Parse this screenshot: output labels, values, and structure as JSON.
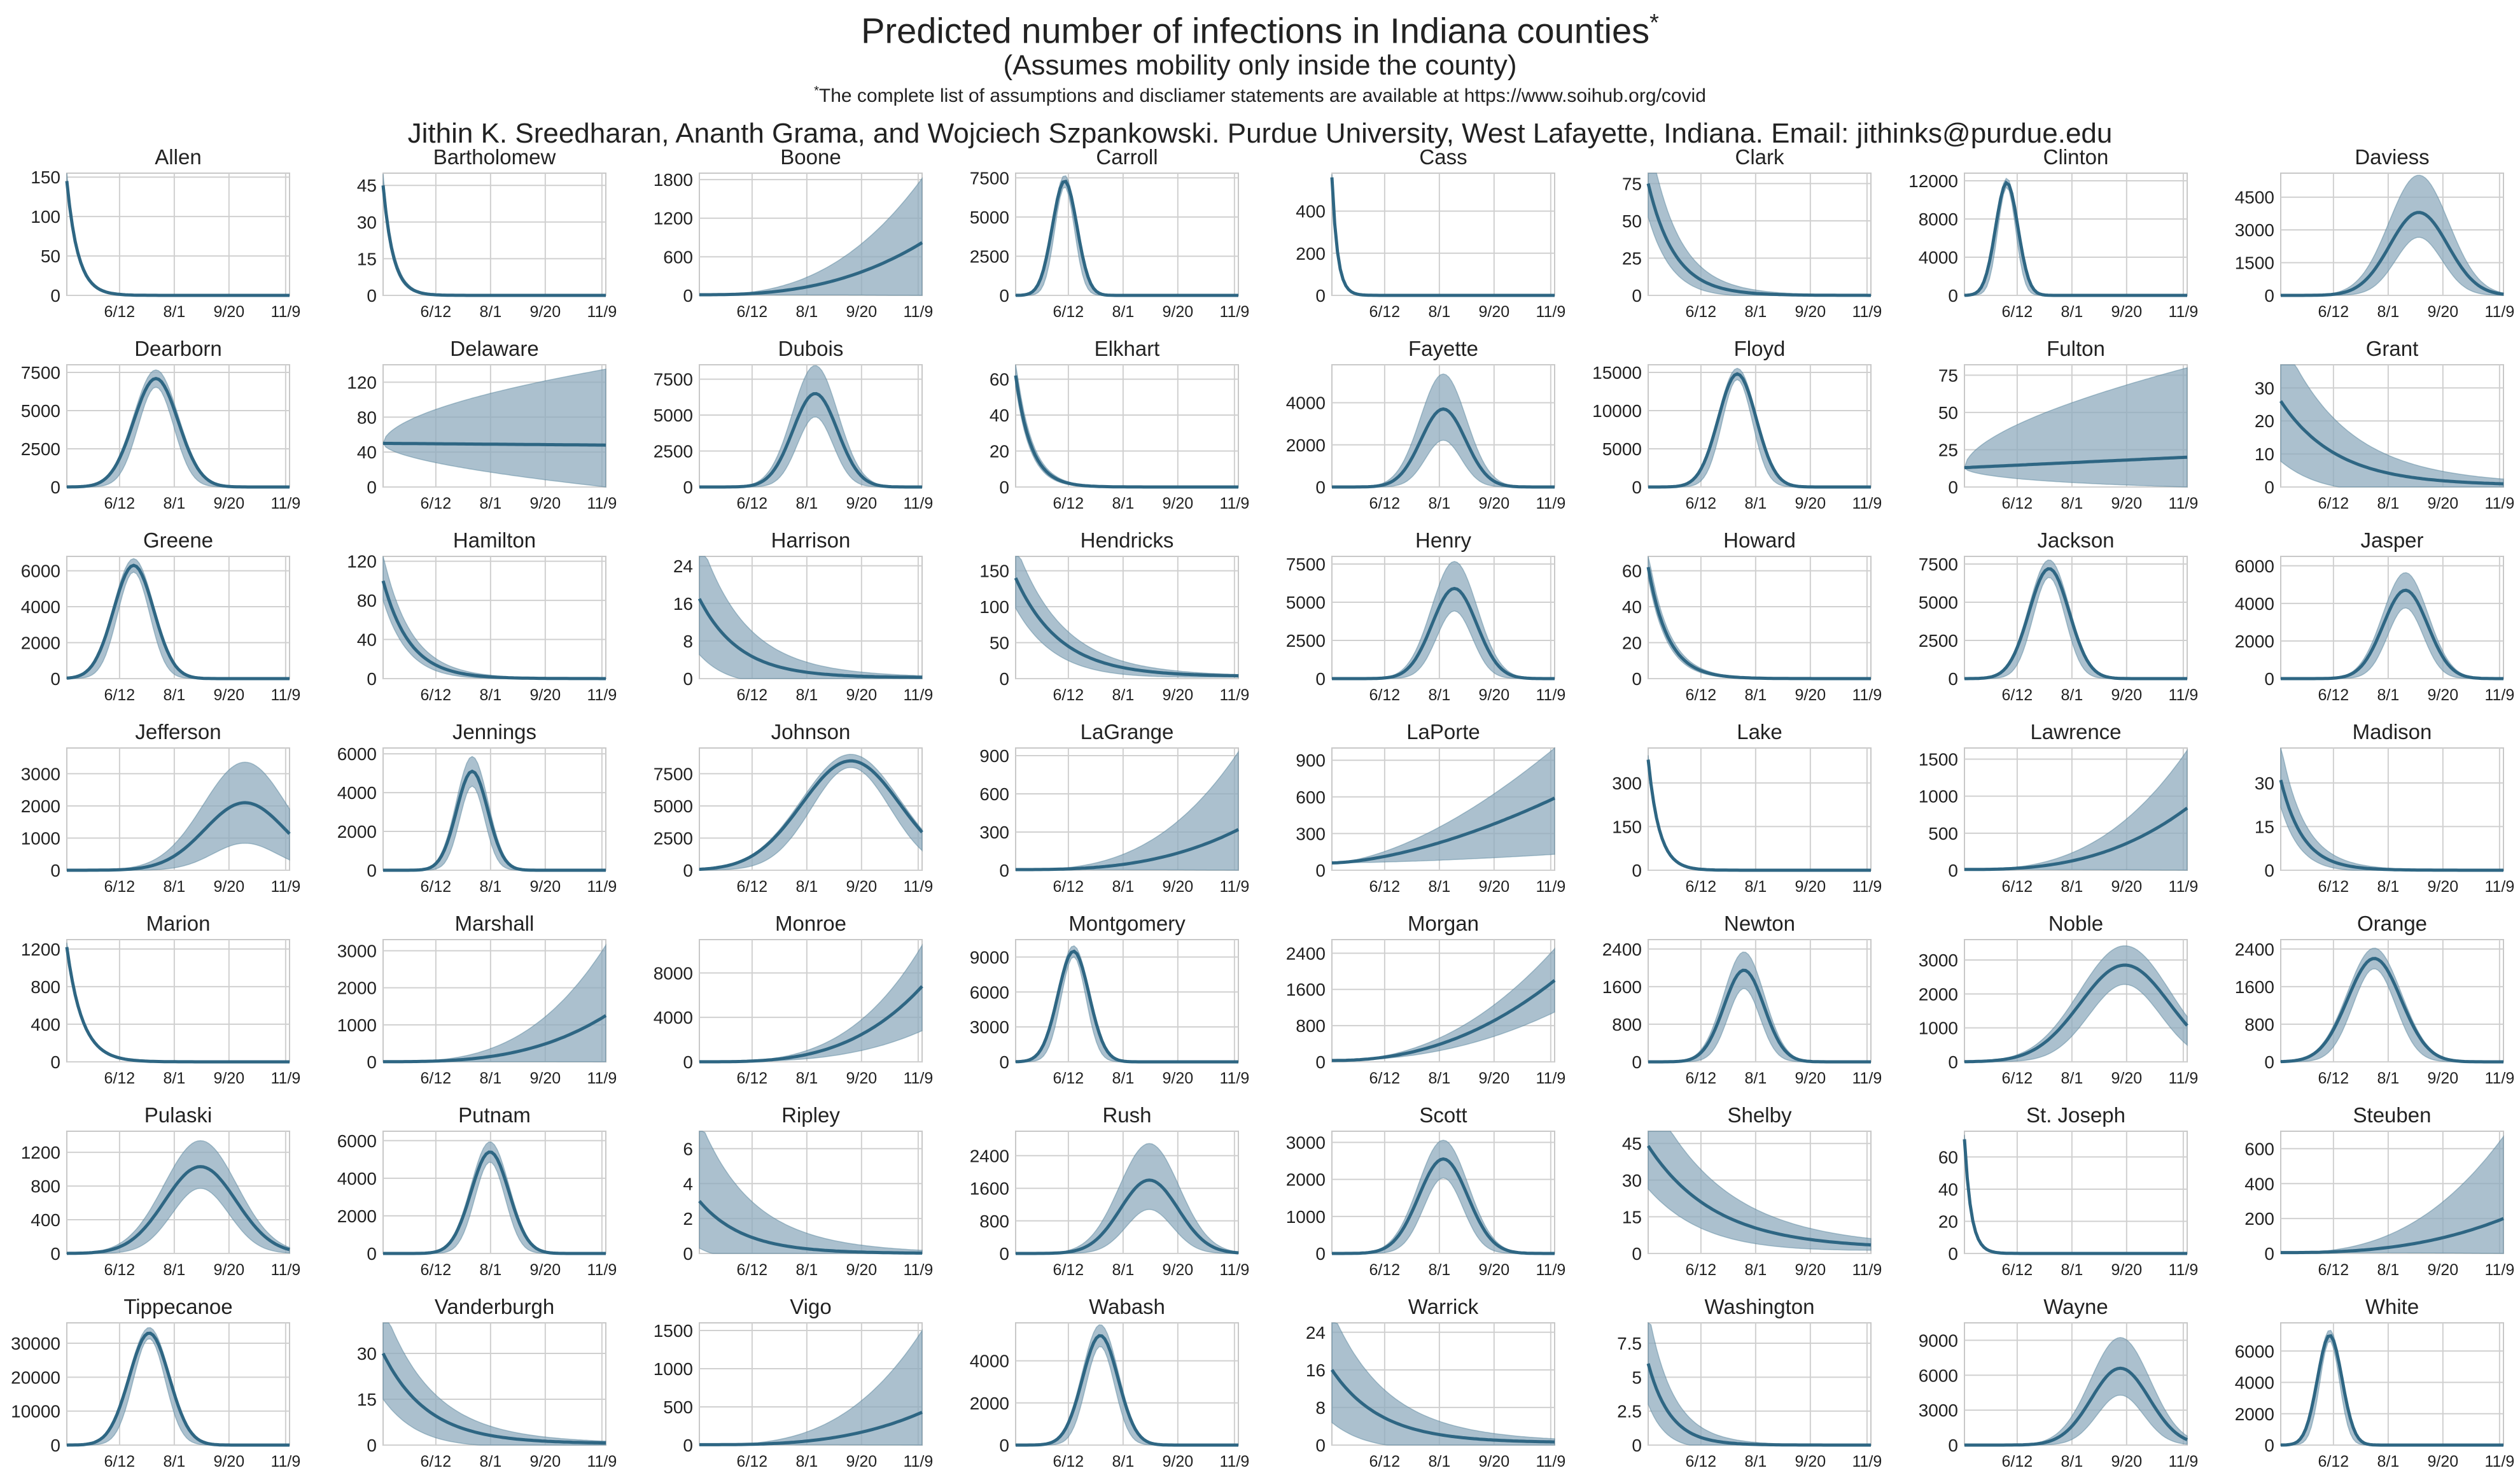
{
  "header": {
    "title": "Predicted number of infections in Indiana counties",
    "title_mark": "*",
    "subtitle": "(Assumes mobility only inside the county)",
    "note_mark": "*",
    "note": "The complete list of assumptions and discliamer statements are available at https://www.soihub.org/covid",
    "authors": "Jithin K. Sreedharan, Ananth Grama, and Wojciech Szpankowski. Purdue University, West Lafayette, Indiana. Email: jithinks@purdue.edu"
  },
  "style": {
    "line_color": "#2e6683",
    "band_color": "#8fabbd",
    "grid_color": "#d0d0d0",
    "frame_color": "#c8c8c8"
  },
  "chart_data": {
    "type": "line",
    "layout": "small-multiples 8 columns x 7 rows",
    "x_axis": {
      "domain": [
        "4/20",
        "11/9"
      ],
      "tick_labels": [
        "6/12",
        "8/1",
        "9/20",
        "11/9"
      ]
    },
    "panels": [
      {
        "name": "Allen",
        "ylim": [
          0,
          155
        ],
        "yticks": [
          0,
          50,
          100,
          150
        ],
        "shape": "decay",
        "start": 145,
        "end": 0,
        "halfRate": 0.05,
        "bandUp": 0.06,
        "bandLo": 0.05
      },
      {
        "name": "Bartholomew",
        "ylim": [
          0,
          50
        ],
        "yticks": [
          0,
          15,
          30,
          45
        ],
        "shape": "decay",
        "start": 45,
        "end": 0,
        "halfRate": 0.045,
        "bandUp": 0.08,
        "bandLo": 0.08
      },
      {
        "name": "Boone",
        "ylim": [
          0,
          1900
        ],
        "yticks": [
          0,
          600,
          1200,
          1800
        ],
        "shape": "grow",
        "start": 10,
        "end": 820,
        "pow": 2.6,
        "bandUpEnd": 1820,
        "bandLoEnd": 0
      },
      {
        "name": "Carroll",
        "ylim": [
          0,
          7800
        ],
        "yticks": [
          0,
          2500,
          5000,
          7500
        ],
        "shape": "peak",
        "peak": 7300,
        "center": 0.22,
        "width": 0.055,
        "bandUp": 0.05,
        "bandLo": 0.05
      },
      {
        "name": "Cass",
        "ylim": [
          0,
          580
        ],
        "yticks": [
          0,
          200,
          400
        ],
        "shape": "decay",
        "start": 560,
        "end": 0,
        "halfRate": 0.025,
        "bandUp": 0.02,
        "bandLo": 0.02
      },
      {
        "name": "Clark",
        "ylim": [
          0,
          82
        ],
        "yticks": [
          0,
          25,
          50,
          75
        ],
        "shape": "decay",
        "start": 75,
        "end": 0,
        "halfRate": 0.12,
        "bandUp": 0.35,
        "bandLo": 0.3
      },
      {
        "name": "Clinton",
        "ylim": [
          0,
          12800
        ],
        "yticks": [
          0,
          4000,
          8000,
          12000
        ],
        "shape": "peak",
        "peak": 11800,
        "center": 0.19,
        "width": 0.05,
        "bandUp": 0.04,
        "bandLo": 0.04
      },
      {
        "name": "Daviess",
        "ylim": [
          0,
          5600
        ],
        "yticks": [
          0,
          1500,
          3000,
          4500
        ],
        "shape": "peak",
        "peak": 3800,
        "center": 0.62,
        "width": 0.13,
        "bandUp": 0.45,
        "bandLo": 0.3
      },
      {
        "name": "Dearborn",
        "ylim": [
          0,
          8000
        ],
        "yticks": [
          0,
          2500,
          5000,
          7500
        ],
        "shape": "peak",
        "peak": 7100,
        "center": 0.4,
        "width": 0.1,
        "bandUp": 0.08,
        "bandLo": 0.08
      },
      {
        "name": "Delaware",
        "ylim": [
          0,
          140
        ],
        "yticks": [
          0,
          40,
          80,
          120
        ],
        "shape": "flat",
        "start": 50,
        "end": 48,
        "bandUpEnd": 135,
        "bandLoEnd": 0
      },
      {
        "name": "Dubois",
        "ylim": [
          0,
          8500
        ],
        "yticks": [
          0,
          2500,
          5000,
          7500
        ],
        "shape": "peak",
        "peak": 6500,
        "center": 0.52,
        "width": 0.1,
        "bandUp": 0.3,
        "bandLo": 0.25
      },
      {
        "name": "Elkhart",
        "ylim": [
          0,
          68
        ],
        "yticks": [
          0,
          20,
          40,
          60
        ],
        "shape": "decay",
        "start": 62,
        "end": 0,
        "halfRate": 0.07,
        "bandUp": 0.1,
        "bandLo": 0.1
      },
      {
        "name": "Fayette",
        "ylim": [
          0,
          5800
        ],
        "yticks": [
          0,
          2000,
          4000
        ],
        "shape": "peak",
        "peak": 3700,
        "center": 0.5,
        "width": 0.1,
        "bandUp": 0.45,
        "bandLo": 0.4
      },
      {
        "name": "Floyd",
        "ylim": [
          0,
          16000
        ],
        "yticks": [
          0,
          5000,
          10000,
          15000
        ],
        "shape": "peak",
        "peak": 14800,
        "center": 0.4,
        "width": 0.085,
        "bandUp": 0.05,
        "bandLo": 0.05
      },
      {
        "name": "Fulton",
        "ylim": [
          0,
          82
        ],
        "yticks": [
          0,
          25,
          50,
          75
        ],
        "shape": "flat",
        "start": 13,
        "end": 20,
        "bandUpEnd": 80,
        "bandLoEnd": 0
      },
      {
        "name": "Grant",
        "ylim": [
          0,
          37
        ],
        "yticks": [
          0,
          10,
          20,
          30
        ],
        "shape": "decay",
        "start": 26,
        "end": 0.5,
        "halfRate": 0.25,
        "bandUp": 0.6,
        "bandLo": 0.7
      },
      {
        "name": "Greene",
        "ylim": [
          0,
          6800
        ],
        "yticks": [
          0,
          2000,
          4000,
          6000
        ],
        "shape": "peak",
        "peak": 6300,
        "center": 0.3,
        "width": 0.09,
        "bandUp": 0.06,
        "bandLo": 0.06
      },
      {
        "name": "Hamilton",
        "ylim": [
          0,
          125
        ],
        "yticks": [
          0,
          40,
          80,
          120
        ],
        "shape": "decay",
        "start": 100,
        "end": 0,
        "halfRate": 0.12,
        "bandUp": 0.2,
        "bandLo": 0.2
      },
      {
        "name": "Harrison",
        "ylim": [
          0,
          26
        ],
        "yticks": [
          0,
          8,
          16,
          24
        ],
        "shape": "decay",
        "start": 17,
        "end": 0.2,
        "halfRate": 0.18,
        "bandUp": 0.6,
        "bandLo": 0.7
      },
      {
        "name": "Hendricks",
        "ylim": [
          0,
          170
        ],
        "yticks": [
          0,
          50,
          100,
          150
        ],
        "shape": "decay",
        "start": 140,
        "end": 3,
        "halfRate": 0.2,
        "bandUp": 0.25,
        "bandLo": 0.3
      },
      {
        "name": "Henry",
        "ylim": [
          0,
          8000
        ],
        "yticks": [
          0,
          2500,
          5000,
          7500
        ],
        "shape": "peak",
        "peak": 5900,
        "center": 0.55,
        "width": 0.1,
        "bandUp": 0.3,
        "bandLo": 0.25
      },
      {
        "name": "Howard",
        "ylim": [
          0,
          68
        ],
        "yticks": [
          0,
          20,
          40,
          60
        ],
        "shape": "decay",
        "start": 62,
        "end": 0,
        "halfRate": 0.09,
        "bandUp": 0.1,
        "bandLo": 0.1
      },
      {
        "name": "Jackson",
        "ylim": [
          0,
          8000
        ],
        "yticks": [
          0,
          2500,
          5000,
          7500
        ],
        "shape": "peak",
        "peak": 7200,
        "center": 0.38,
        "width": 0.09,
        "bandUp": 0.08,
        "bandLo": 0.08
      },
      {
        "name": "Jasper",
        "ylim": [
          0,
          6500
        ],
        "yticks": [
          0,
          2000,
          4000,
          6000
        ],
        "shape": "peak",
        "peak": 4700,
        "center": 0.56,
        "width": 0.1,
        "bandUp": 0.2,
        "bandLo": 0.2
      },
      {
        "name": "Jefferson",
        "ylim": [
          0,
          3800
        ],
        "yticks": [
          0,
          1000,
          2000,
          3000
        ],
        "shape": "peak",
        "peak": 2100,
        "center": 0.8,
        "width": 0.18,
        "bandUp": 0.6,
        "bandLo": 0.6
      },
      {
        "name": "Jennings",
        "ylim": [
          0,
          6300
        ],
        "yticks": [
          0,
          2000,
          4000,
          6000
        ],
        "shape": "peak",
        "peak": 5100,
        "center": 0.4,
        "width": 0.07,
        "bandUp": 0.15,
        "bandLo": 0.15
      },
      {
        "name": "Johnson",
        "ylim": [
          0,
          9500
        ],
        "yticks": [
          0,
          2500,
          5000,
          7500
        ],
        "shape": "peak",
        "peak": 8500,
        "center": 0.68,
        "width": 0.22,
        "bandUp": 0.06,
        "bandLo": 0.06
      },
      {
        "name": "LaGrange",
        "ylim": [
          0,
          960
        ],
        "yticks": [
          0,
          300,
          600,
          900
        ],
        "shape": "grow",
        "start": 5,
        "end": 320,
        "pow": 2.8,
        "bandUpEnd": 930,
        "bandLoEnd": 0
      },
      {
        "name": "LaPorte",
        "ylim": [
          0,
          1000
        ],
        "yticks": [
          0,
          300,
          600,
          900
        ],
        "shape": "grow",
        "start": 60,
        "end": 590,
        "pow": 1.6,
        "bandUpEnd": 1000,
        "bandLoEnd": 130
      },
      {
        "name": "Lake",
        "ylim": [
          0,
          420
        ],
        "yticks": [
          0,
          150,
          300
        ],
        "shape": "decay",
        "start": 380,
        "end": 0,
        "halfRate": 0.05,
        "bandUp": 0.03,
        "bandLo": 0.03
      },
      {
        "name": "Lawrence",
        "ylim": [
          0,
          1650
        ],
        "yticks": [
          0,
          500,
          1000,
          1500
        ],
        "shape": "grow",
        "start": 10,
        "end": 840,
        "pow": 2.7,
        "bandUpEnd": 1620,
        "bandLoEnd": 0
      },
      {
        "name": "Madison",
        "ylim": [
          0,
          42
        ],
        "yticks": [
          0,
          15,
          30
        ],
        "shape": "decay",
        "start": 31,
        "end": 0,
        "halfRate": 0.1,
        "bandUp": 0.3,
        "bandLo": 0.3
      },
      {
        "name": "Marion",
        "ylim": [
          0,
          1300
        ],
        "yticks": [
          0,
          400,
          800,
          1200
        ],
        "shape": "decay",
        "start": 1220,
        "end": 0,
        "halfRate": 0.07,
        "bandUp": 0.03,
        "bandLo": 0.03
      },
      {
        "name": "Marshall",
        "ylim": [
          0,
          3300
        ],
        "yticks": [
          0,
          1000,
          2000,
          3000
        ],
        "shape": "grow",
        "start": 5,
        "end": 1250,
        "pow": 3,
        "bandUpEnd": 3150,
        "bandLoEnd": 0
      },
      {
        "name": "Monroe",
        "ylim": [
          0,
          11000
        ],
        "yticks": [
          0,
          4000,
          8000
        ],
        "shape": "grow",
        "start": 5,
        "end": 6800,
        "pow": 3.2,
        "bandUpEnd": 10500,
        "bandLoEnd": 2800
      },
      {
        "name": "Montgomery",
        "ylim": [
          0,
          10500
        ],
        "yticks": [
          0,
          3000,
          6000,
          9000
        ],
        "shape": "peak",
        "peak": 9500,
        "center": 0.26,
        "width": 0.07,
        "bandUp": 0.05,
        "bandLo": 0.05
      },
      {
        "name": "Morgan",
        "ylim": [
          0,
          2700
        ],
        "yticks": [
          0,
          800,
          1600,
          2400
        ],
        "shape": "grow",
        "start": 30,
        "end": 1800,
        "pow": 2.2,
        "bandUpEnd": 2500,
        "bandLoEnd": 1100
      },
      {
        "name": "Newton",
        "ylim": [
          0,
          2600
        ],
        "yticks": [
          0,
          800,
          1600,
          2400
        ],
        "shape": "peak",
        "peak": 1950,
        "center": 0.43,
        "width": 0.09,
        "bandUp": 0.2,
        "bandLo": 0.2
      },
      {
        "name": "Noble",
        "ylim": [
          0,
          3600
        ],
        "yticks": [
          0,
          1000,
          2000,
          3000
        ],
        "shape": "peak",
        "peak": 2850,
        "center": 0.72,
        "width": 0.2,
        "bandUp": 0.2,
        "bandLo": 0.2
      },
      {
        "name": "Orange",
        "ylim": [
          0,
          2600
        ],
        "yticks": [
          0,
          800,
          1600,
          2400
        ],
        "shape": "peak",
        "peak": 2200,
        "center": 0.42,
        "width": 0.12,
        "bandUp": 0.1,
        "bandLo": 0.1
      },
      {
        "name": "Pulaski",
        "ylim": [
          0,
          1450
        ],
        "yticks": [
          0,
          400,
          800,
          1200
        ],
        "shape": "peak",
        "peak": 1030,
        "center": 0.6,
        "width": 0.16,
        "bandUp": 0.3,
        "bandLo": 0.25
      },
      {
        "name": "Putnam",
        "ylim": [
          0,
          6500
        ],
        "yticks": [
          0,
          2000,
          4000,
          6000
        ],
        "shape": "peak",
        "peak": 5400,
        "center": 0.48,
        "width": 0.085,
        "bandUp": 0.1,
        "bandLo": 0.1
      },
      {
        "name": "Ripley",
        "ylim": [
          0,
          7
        ],
        "yticks": [
          0,
          2,
          4,
          6
        ],
        "shape": "decay",
        "start": 3,
        "end": 0,
        "halfRate": 0.2,
        "bandUp": 1.2,
        "bandLo": 0.9
      },
      {
        "name": "Rush",
        "ylim": [
          0,
          3000
        ],
        "yticks": [
          0,
          800,
          1600,
          2400
        ],
        "shape": "peak",
        "peak": 1800,
        "center": 0.6,
        "width": 0.13,
        "bandUp": 0.5,
        "bandLo": 0.4
      },
      {
        "name": "Scott",
        "ylim": [
          0,
          3300
        ],
        "yticks": [
          0,
          1000,
          2000,
          3000
        ],
        "shape": "peak",
        "peak": 2550,
        "center": 0.5,
        "width": 0.11,
        "bandUp": 0.2,
        "bandLo": 0.2
      },
      {
        "name": "Shelby",
        "ylim": [
          0,
          50
        ],
        "yticks": [
          0,
          15,
          30,
          45
        ],
        "shape": "decay",
        "start": 44,
        "end": 2,
        "halfRate": 0.3,
        "bandUp": 0.4,
        "bandLo": 0.4
      },
      {
        "name": "St. Joseph",
        "ylim": [
          0,
          76
        ],
        "yticks": [
          0,
          20,
          40,
          60
        ],
        "shape": "decay",
        "start": 71,
        "end": 0,
        "halfRate": 0.03,
        "bandUp": 0.03,
        "bandLo": 0.03
      },
      {
        "name": "Steuben",
        "ylim": [
          0,
          700
        ],
        "yticks": [
          0,
          200,
          400,
          600
        ],
        "shape": "grow",
        "start": 5,
        "end": 200,
        "pow": 2.6,
        "bandUpEnd": 670,
        "bandLoEnd": 0
      },
      {
        "name": "Tippecanoe",
        "ylim": [
          0,
          36000
        ],
        "yticks": [
          0,
          10000,
          20000,
          30000
        ],
        "shape": "peak",
        "peak": 33000,
        "center": 0.37,
        "width": 0.09,
        "bandUp": 0.05,
        "bandLo": 0.05
      },
      {
        "name": "Vanderburgh",
        "ylim": [
          0,
          40
        ],
        "yticks": [
          0,
          15,
          30
        ],
        "shape": "decay",
        "start": 30,
        "end": 0.5,
        "halfRate": 0.2,
        "bandUp": 0.4,
        "bandLo": 0.5
      },
      {
        "name": "Vigo",
        "ylim": [
          0,
          1600
        ],
        "yticks": [
          0,
          500,
          1000,
          1500
        ],
        "shape": "grow",
        "start": 5,
        "end": 430,
        "pow": 3,
        "bandUpEnd": 1500,
        "bandLoEnd": 0
      },
      {
        "name": "Wabash",
        "ylim": [
          0,
          5800
        ],
        "yticks": [
          0,
          2000,
          4000
        ],
        "shape": "peak",
        "peak": 5200,
        "center": 0.38,
        "width": 0.08,
        "bandUp": 0.1,
        "bandLo": 0.1
      },
      {
        "name": "Warrick",
        "ylim": [
          0,
          26
        ],
        "yticks": [
          0,
          8,
          16,
          24
        ],
        "shape": "decay",
        "start": 16,
        "end": 0.5,
        "halfRate": 0.22,
        "bandUp": 0.6,
        "bandLo": 0.7
      },
      {
        "name": "Washington",
        "ylim": [
          0,
          9
        ],
        "yticks": [
          0.0,
          2.5,
          5.0,
          7.5
        ],
        "shape": "decay",
        "start": 6,
        "end": 0,
        "halfRate": 0.1,
        "bandUp": 0.5,
        "bandLo": 0.5
      },
      {
        "name": "Wayne",
        "ylim": [
          0,
          10500
        ],
        "yticks": [
          0,
          3000,
          6000,
          9000
        ],
        "shape": "peak",
        "peak": 6600,
        "center": 0.7,
        "width": 0.13,
        "bandUp": 0.4,
        "bandLo": 0.35
      },
      {
        "name": "White",
        "ylim": [
          0,
          7800
        ],
        "yticks": [
          0,
          2000,
          4000,
          6000
        ],
        "shape": "peak",
        "peak": 7000,
        "center": 0.22,
        "width": 0.055,
        "bandUp": 0.05,
        "bandLo": 0.05
      }
    ]
  }
}
